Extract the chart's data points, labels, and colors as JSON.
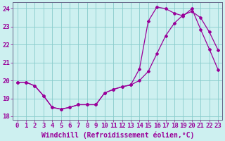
{
  "xlabel": "Windchill (Refroidissement éolien,°C)",
  "background_color": "#cdf0f0",
  "line_color": "#990099",
  "grid_color": "#88cccc",
  "xlim": [
    -0.5,
    23.5
  ],
  "ylim": [
    17.8,
    24.35
  ],
  "xticks": [
    0,
    1,
    2,
    3,
    4,
    5,
    6,
    7,
    8,
    9,
    10,
    11,
    12,
    13,
    14,
    15,
    16,
    17,
    18,
    19,
    20,
    21,
    22,
    23
  ],
  "yticks": [
    18,
    19,
    20,
    21,
    22,
    23,
    24
  ],
  "curve_upper_x": [
    0,
    1,
    2,
    3,
    4,
    5,
    6,
    7,
    8,
    9,
    10,
    11,
    12,
    13,
    14,
    15,
    16,
    17,
    18,
    19,
    20,
    21,
    22,
    23
  ],
  "curve_upper_y": [
    19.9,
    19.9,
    19.7,
    19.15,
    18.5,
    18.4,
    18.5,
    18.65,
    18.65,
    18.65,
    19.3,
    19.5,
    19.65,
    19.75,
    20.65,
    23.3,
    24.1,
    24.0,
    23.75,
    23.6,
    24.0,
    22.85,
    21.75,
    20.6
  ],
  "curve_lower_x": [
    0,
    1,
    2,
    3,
    4,
    5,
    6,
    7,
    8,
    9,
    10,
    11,
    12,
    13,
    14,
    15,
    16,
    17,
    18,
    19,
    20,
    21,
    22,
    23
  ],
  "curve_lower_y": [
    19.9,
    19.9,
    19.7,
    19.15,
    18.5,
    18.4,
    18.5,
    18.65,
    18.65,
    18.65,
    19.3,
    19.5,
    19.65,
    19.75,
    20.0,
    20.5,
    21.5,
    22.5,
    23.2,
    23.65,
    23.85,
    23.5,
    22.7,
    21.7
  ],
  "font_family": "monospace",
  "tick_fontsize": 6.5,
  "label_fontsize": 7,
  "marker": "D",
  "marker_size": 2,
  "line_width": 0.9
}
